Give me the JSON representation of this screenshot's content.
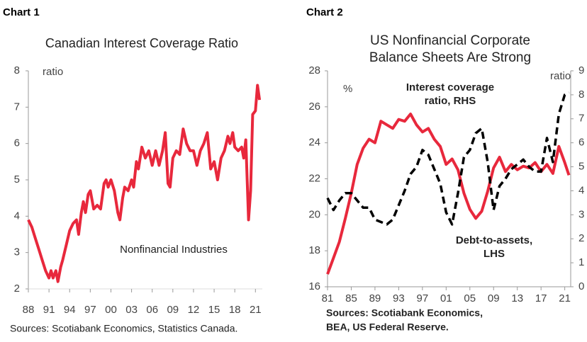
{
  "chart_data": [
    {
      "type": "line",
      "header": "Chart 1",
      "title": "Canadian Interest Coverage Ratio",
      "y_label": "ratio",
      "annotation": "Nonfinancial Industries",
      "source": "Sources: Scotiabank Economics, Statistics Canada.",
      "x": [
        1988,
        1988.5,
        1989,
        1989.5,
        1990,
        1990.5,
        1991,
        1991.3,
        1991.6,
        1992,
        1992.3,
        1992.7,
        1993,
        1993.5,
        1994,
        1994.5,
        1995,
        1995.3,
        1995.7,
        1996,
        1996.3,
        1996.7,
        1997,
        1997.5,
        1998,
        1998.5,
        1999,
        1999.3,
        1999.6,
        2000,
        2000.5,
        2001,
        2001.3,
        2001.7,
        2002,
        2002.5,
        2003,
        2003.3,
        2003.7,
        2004,
        2004.5,
        2005,
        2005.5,
        2006,
        2006.5,
        2007,
        2007.5,
        2007.9,
        2008.3,
        2008.6,
        2009,
        2009.5,
        2010,
        2010.5,
        2011,
        2011.5,
        2012,
        2012.5,
        2013,
        2013.5,
        2014,
        2014.5,
        2015,
        2015.5,
        2016,
        2016.5,
        2017,
        2017.3,
        2017.7,
        2018,
        2018.5,
        2019,
        2019.3,
        2019.6,
        2020,
        2020.3,
        2020.6,
        2021,
        2021.3,
        2021.6
      ],
      "series": [
        {
          "color": "#e8283c",
          "values": [
            3.9,
            3.7,
            3.4,
            3.1,
            2.8,
            2.5,
            2.3,
            2.5,
            2.3,
            2.5,
            2.2,
            2.6,
            2.8,
            3.2,
            3.6,
            3.8,
            3.9,
            3.5,
            4.1,
            4.4,
            4.1,
            4.6,
            4.7,
            4.2,
            4.3,
            4.2,
            4.9,
            5.0,
            4.8,
            5.0,
            4.7,
            4.1,
            3.9,
            4.5,
            4.8,
            4.7,
            5.0,
            4.8,
            5.5,
            5.3,
            5.9,
            5.6,
            5.8,
            5.4,
            5.8,
            5.4,
            5.8,
            6.3,
            4.9,
            4.8,
            5.6,
            5.8,
            5.7,
            6.4,
            6.0,
            5.8,
            5.8,
            5.4,
            5.8,
            6.0,
            6.3,
            5.3,
            5.5,
            5.0,
            5.6,
            5.8,
            6.2,
            6.0,
            6.3,
            5.9,
            5.8,
            5.9,
            5.6,
            6.1,
            3.9,
            4.7,
            6.8,
            6.9,
            7.6,
            7.2
          ]
        }
      ],
      "xlim": [
        1988,
        2022
      ],
      "xticks": [
        {
          "value": 1988,
          "label": "88"
        },
        {
          "value": 1991,
          "label": "91"
        },
        {
          "value": 1994,
          "label": "94"
        },
        {
          "value": 1997,
          "label": "97"
        },
        {
          "value": 2000,
          "label": "00"
        },
        {
          "value": 2003,
          "label": "03"
        },
        {
          "value": 2006,
          "label": "06"
        },
        {
          "value": 2009,
          "label": "09"
        },
        {
          "value": 2012,
          "label": "12"
        },
        {
          "value": 2015,
          "label": "15"
        },
        {
          "value": 2018,
          "label": "18"
        },
        {
          "value": 2021,
          "label": "21"
        }
      ],
      "ylim": [
        2,
        8
      ],
      "yticks": [
        2,
        3,
        4,
        5,
        6,
        7,
        8
      ]
    },
    {
      "type": "line",
      "header": "Chart 2",
      "title": [
        "US Nonfinancial Corporate",
        "Balance Sheets Are Strong"
      ],
      "y_label": "%",
      "y2_label": "ratio",
      "annotations": [
        {
          "lines": [
            "Interest coverage",
            "ratio, RHS"
          ],
          "color": "#000000"
        },
        {
          "lines": [
            "Debt-to-assets,",
            "LHS"
          ],
          "color": "#e8283c"
        }
      ],
      "source": [
        "Sources: Scotiabank Economics,",
        "BEA, US Federal Reserve."
      ],
      "x": [
        1981,
        1982,
        1983,
        1984,
        1985,
        1986,
        1987,
        1988,
        1989,
        1990,
        1991,
        1992,
        1993,
        1994,
        1995,
        1996,
        1997,
        1998,
        1999,
        2000,
        2001,
        2002,
        2003,
        2004,
        2005,
        2006,
        2007,
        2008,
        2009,
        2010,
        2011,
        2012,
        2013,
        2014,
        2015,
        2016,
        2017,
        2018,
        2019,
        2020,
        2021,
        2021.7
      ],
      "series": [
        {
          "color": "#e8283c",
          "line_style": "solid",
          "axis": "y",
          "values": [
            16.7,
            17.6,
            18.5,
            19.8,
            21.2,
            22.8,
            23.7,
            24.2,
            24.0,
            25.2,
            25.0,
            24.8,
            25.3,
            25.2,
            25.6,
            25.0,
            24.6,
            24.8,
            24.2,
            23.8,
            22.8,
            23.1,
            22.5,
            21.2,
            20.3,
            19.8,
            20.2,
            21.3,
            22.6,
            23.2,
            22.4,
            22.8,
            22.5,
            22.7,
            22.6,
            22.9,
            22.4,
            22.8,
            22.3,
            23.8,
            22.9,
            22.2
          ]
        },
        {
          "color": "#000000",
          "line_style": "dashed",
          "axis": "y2",
          "values": [
            3.7,
            3.2,
            3.6,
            3.9,
            3.9,
            3.6,
            3.3,
            3.3,
            2.8,
            2.7,
            2.6,
            2.8,
            3.4,
            4.0,
            4.7,
            5.0,
            5.7,
            5.5,
            4.9,
            4.3,
            3.1,
            2.6,
            3.9,
            5.4,
            5.7,
            6.4,
            6.6,
            5.2,
            3.2,
            4.2,
            4.5,
            4.9,
            5.1,
            5.3,
            5.0,
            4.8,
            4.8,
            6.2,
            5.2,
            7.2,
            8.0,
            8.1
          ]
        }
      ],
      "xlim": [
        1981,
        2022
      ],
      "xticks": [
        {
          "value": 1981,
          "label": "81"
        },
        {
          "value": 1985,
          "label": "85"
        },
        {
          "value": 1989,
          "label": "89"
        },
        {
          "value": 1993,
          "label": "93"
        },
        {
          "value": 1997,
          "label": "97"
        },
        {
          "value": 2001,
          "label": "01"
        },
        {
          "value": 2005,
          "label": "05"
        },
        {
          "value": 2009,
          "label": "09"
        },
        {
          "value": 2013,
          "label": "13"
        },
        {
          "value": 2017,
          "label": "17"
        },
        {
          "value": 2021,
          "label": "21"
        }
      ],
      "ylim": [
        16,
        28
      ],
      "yticks": [
        16,
        18,
        20,
        22,
        24,
        26,
        28
      ],
      "y2lim": [
        0,
        9
      ],
      "y2ticks": [
        0,
        1,
        2,
        3,
        4,
        5,
        6,
        7,
        8,
        9
      ]
    }
  ]
}
